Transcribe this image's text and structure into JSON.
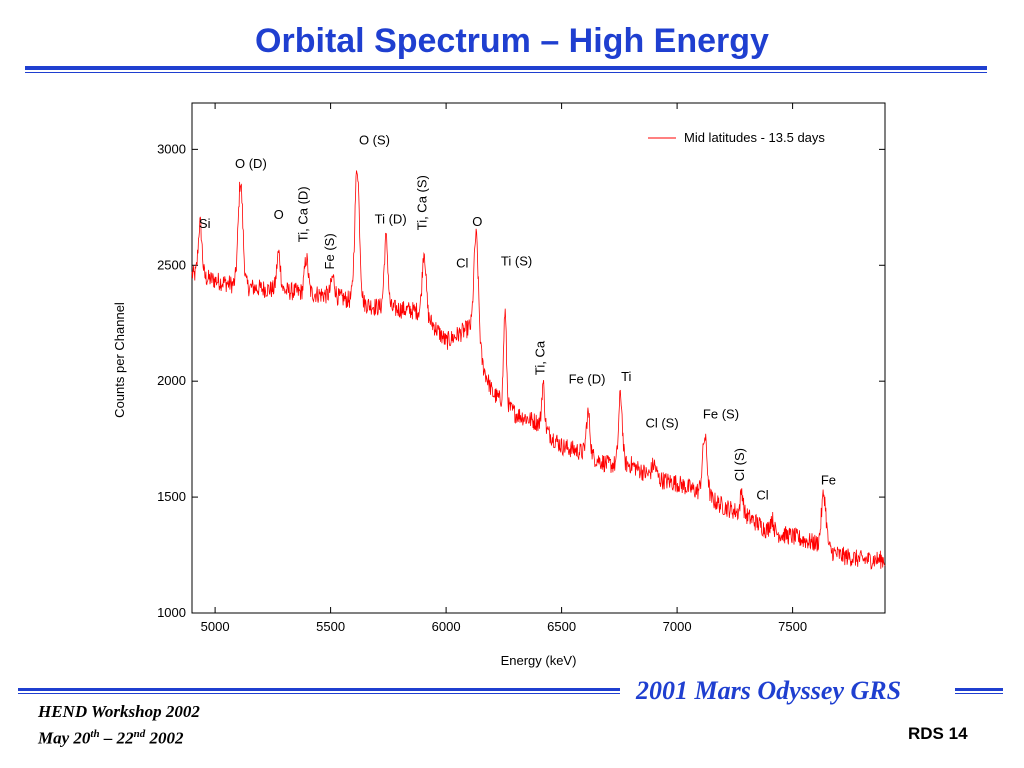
{
  "slide": {
    "title": "Orbital Spectrum – High Energy",
    "footer_line1": "HEND Workshop 2002",
    "footer_date_prefix": "May 20",
    "footer_date_sup1": "th",
    "footer_date_mid": " – 22",
    "footer_date_sup2": "nd",
    "footer_date_suffix": " 2002",
    "footer_right": "2001 Mars Odyssey GRS",
    "slide_number": "RDS 14",
    "accent_color": "#1f3fd0"
  },
  "chart_data": {
    "type": "line",
    "title": "",
    "xlabel": "Energy (keV)",
    "ylabel": "Counts per Channel",
    "xlim": [
      4900,
      7900
    ],
    "ylim": [
      1000,
      3200
    ],
    "xticks": [
      5000,
      5500,
      6000,
      6500,
      7000,
      7500
    ],
    "yticks": [
      1000,
      1500,
      2000,
      2500,
      3000
    ],
    "grid": false,
    "legend_position": "top-right",
    "series": [
      {
        "name": "Mid latitudes - 13.5 days",
        "color": "#ff0000",
        "baseline": {
          "x": [
            4900,
            5100,
            5300,
            5500,
            5700,
            5900,
            6000,
            6100,
            6200,
            6300,
            6400,
            6500,
            6600,
            6700,
            6800,
            6900,
            7000,
            7100,
            7200,
            7300,
            7400,
            7500,
            7600,
            7700,
            7800,
            7900
          ],
          "y": [
            2460,
            2410,
            2390,
            2370,
            2320,
            2300,
            2170,
            2230,
            1950,
            1860,
            1820,
            1720,
            1690,
            1640,
            1640,
            1580,
            1560,
            1520,
            1460,
            1420,
            1350,
            1330,
            1300,
            1250,
            1230,
            1230
          ]
        },
        "peaks": [
          {
            "x": 4935,
            "height": 230,
            "width": 8
          },
          {
            "x": 5110,
            "height": 450,
            "width": 10
          },
          {
            "x": 5275,
            "height": 160,
            "width": 8
          },
          {
            "x": 5395,
            "height": 150,
            "width": 8
          },
          {
            "x": 5510,
            "height": 80,
            "width": 8
          },
          {
            "x": 5615,
            "height": 580,
            "width": 10
          },
          {
            "x": 5740,
            "height": 300,
            "width": 8
          },
          {
            "x": 5905,
            "height": 270,
            "width": 8
          },
          {
            "x": 6130,
            "height": 480,
            "width": 10
          },
          {
            "x": 6255,
            "height": 400,
            "width": 6
          },
          {
            "x": 6420,
            "height": 190,
            "width": 6
          },
          {
            "x": 6615,
            "height": 180,
            "width": 8
          },
          {
            "x": 6755,
            "height": 300,
            "width": 8
          },
          {
            "x": 6900,
            "height": 60,
            "width": 10
          },
          {
            "x": 7120,
            "height": 250,
            "width": 10
          },
          {
            "x": 7280,
            "height": 100,
            "width": 6
          },
          {
            "x": 7410,
            "height": 60,
            "width": 8
          },
          {
            "x": 7635,
            "height": 230,
            "width": 10
          }
        ],
        "noise_amplitude": 40
      }
    ],
    "annotations": [
      {
        "text": "Si",
        "x": 4955,
        "y": 2660,
        "rotate": false
      },
      {
        "text": "O (D)",
        "x": 5155,
        "y": 2920,
        "rotate": false
      },
      {
        "text": "O",
        "x": 5275,
        "y": 2700,
        "rotate": false
      },
      {
        "text": "Ti, Ca (D)",
        "x": 5400,
        "y": 2720,
        "rotate": true
      },
      {
        "text": "Fe (S)",
        "x": 5515,
        "y": 2560,
        "rotate": true
      },
      {
        "text": "O (S)",
        "x": 5690,
        "y": 3020,
        "rotate": false
      },
      {
        "text": "Ti (D)",
        "x": 5760,
        "y": 2680,
        "rotate": false
      },
      {
        "text": "Ti, Ca (S)",
        "x": 5915,
        "y": 2770,
        "rotate": true
      },
      {
        "text": "O",
        "x": 6135,
        "y": 2670,
        "rotate": false
      },
      {
        "text": "Cl",
        "x": 6070,
        "y": 2490,
        "rotate": false
      },
      {
        "text": "Ti (S)",
        "x": 6305,
        "y": 2500,
        "rotate": false
      },
      {
        "text": "Ti, Ca",
        "x": 6425,
        "y": 2100,
        "rotate": true
      },
      {
        "text": "Fe (D)",
        "x": 6610,
        "y": 1990,
        "rotate": false
      },
      {
        "text": "Ti",
        "x": 6780,
        "y": 2000,
        "rotate": false
      },
      {
        "text": "Cl (S)",
        "x": 6935,
        "y": 1800,
        "rotate": false
      },
      {
        "text": "Fe (S)",
        "x": 7190,
        "y": 1840,
        "rotate": false
      },
      {
        "text": "Cl (S)",
        "x": 7290,
        "y": 1640,
        "rotate": true
      },
      {
        "text": "Cl",
        "x": 7370,
        "y": 1490,
        "rotate": false
      },
      {
        "text": "Fe",
        "x": 7655,
        "y": 1555,
        "rotate": false
      }
    ]
  }
}
